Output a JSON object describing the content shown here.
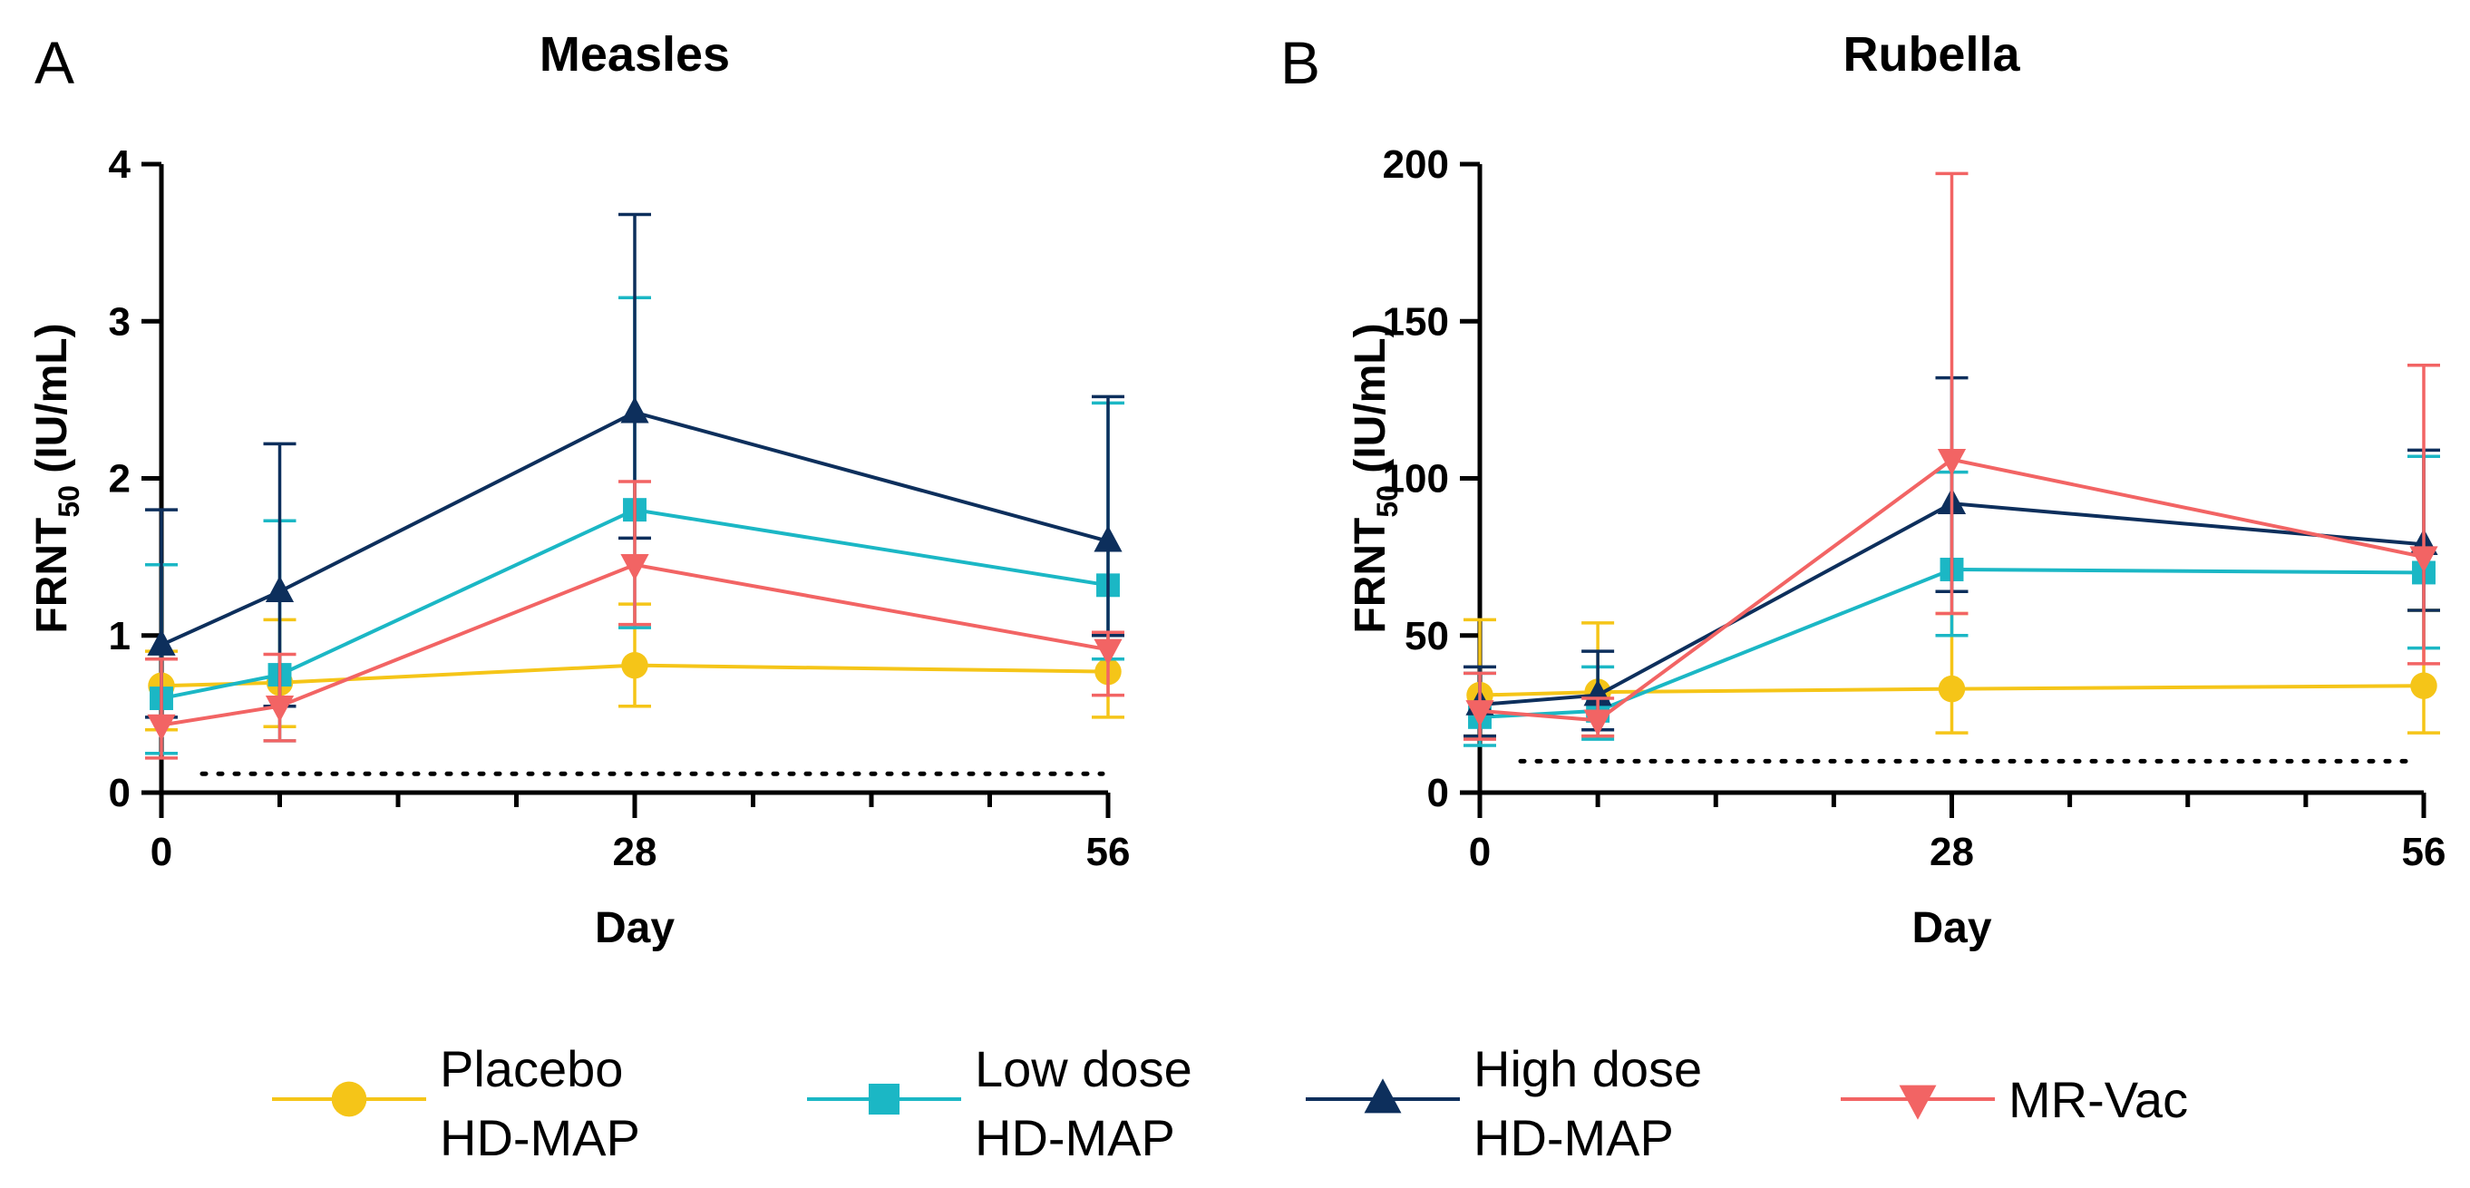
{
  "legend": [
    {
      "series": "placebo",
      "line1": "Placebo",
      "line2": "HD-MAP"
    },
    {
      "series": "low",
      "line1": "Low dose",
      "line2": "HD-MAP"
    },
    {
      "series": "high",
      "line1": "High dose",
      "line2": "HD-MAP"
    },
    {
      "series": "mrvac",
      "line1": "MR-Vac",
      "line2": ""
    }
  ],
  "series_styles": {
    "placebo": {
      "color": "#F5C518",
      "marker": "circle"
    },
    "low": {
      "color": "#1BB7C5",
      "marker": "square"
    },
    "high": {
      "color": "#0D2F5C",
      "marker": "triangle-up"
    },
    "mrvac": {
      "color": "#F26464",
      "marker": "triangle-down"
    }
  },
  "chart_data": [
    {
      "type": "line",
      "panel_label": "A",
      "title": "Measles",
      "xlabel": "Day",
      "ylabel_main": "FRNT",
      "ylabel_sub": "50",
      "ylabel_unit": " (IU/mL)",
      "xlim": [
        0,
        56
      ],
      "ylim": [
        0,
        4
      ],
      "xticks": [
        0,
        28,
        56
      ],
      "xticks_minor": [
        7,
        14,
        21,
        35,
        42,
        49
      ],
      "yticks": [
        0,
        1,
        2,
        3,
        4
      ],
      "detection_limit": 0.12,
      "series": [
        {
          "id": "placebo",
          "name": "Placebo HD-MAP",
          "points": [
            {
              "x": 0,
              "y": 0.68,
              "lo": 0.4,
              "hi": 0.9
            },
            {
              "x": 7,
              "y": 0.7,
              "lo": 0.42,
              "hi": 1.1
            },
            {
              "x": 28,
              "y": 0.81,
              "lo": 0.55,
              "hi": 1.2
            },
            {
              "x": 56,
              "y": 0.77,
              "lo": 0.48,
              "hi": 1.0
            }
          ]
        },
        {
          "id": "low",
          "name": "Low dose HD-MAP",
          "points": [
            {
              "x": 0,
              "y": 0.6,
              "lo": 0.25,
              "hi": 1.45
            },
            {
              "x": 7,
              "y": 0.75,
              "lo": 0.33,
              "hi": 1.73
            },
            {
              "x": 28,
              "y": 1.8,
              "lo": 1.05,
              "hi": 3.15
            },
            {
              "x": 56,
              "y": 1.32,
              "lo": 0.85,
              "hi": 2.48
            }
          ]
        },
        {
          "id": "high",
          "name": "High dose HD-MAP",
          "points": [
            {
              "x": 0,
              "y": 0.94,
              "lo": 0.48,
              "hi": 1.8
            },
            {
              "x": 7,
              "y": 1.28,
              "lo": 0.55,
              "hi": 2.22
            },
            {
              "x": 28,
              "y": 2.42,
              "lo": 1.62,
              "hi": 3.68
            },
            {
              "x": 56,
              "y": 1.6,
              "lo": 1.0,
              "hi": 2.52
            }
          ]
        },
        {
          "id": "mrvac",
          "name": "MR-Vac",
          "points": [
            {
              "x": 0,
              "y": 0.43,
              "lo": 0.22,
              "hi": 0.85
            },
            {
              "x": 7,
              "y": 0.55,
              "lo": 0.33,
              "hi": 0.88
            },
            {
              "x": 28,
              "y": 1.45,
              "lo": 1.07,
              "hi": 1.98
            },
            {
              "x": 56,
              "y": 0.91,
              "lo": 0.62,
              "hi": 1.02
            }
          ]
        }
      ]
    },
    {
      "type": "line",
      "panel_label": "B",
      "title": "Rubella",
      "xlabel": "Day",
      "ylabel_main": "FRNT",
      "ylabel_sub": "50",
      "ylabel_unit": "  (IU/mL)",
      "xlim": [
        0,
        56
      ],
      "ylim": [
        0,
        200
      ],
      "xticks": [
        0,
        28,
        56
      ],
      "xticks_minor": [
        7,
        14,
        21,
        35,
        42,
        49
      ],
      "yticks": [
        0,
        50,
        100,
        150,
        200
      ],
      "detection_limit": 10,
      "series": [
        {
          "id": "placebo",
          "name": "Placebo HD-MAP",
          "points": [
            {
              "x": 0,
              "y": 31,
              "lo": 18,
              "hi": 55
            },
            {
              "x": 7,
              "y": 32,
              "lo": 18,
              "hi": 54
            },
            {
              "x": 28,
              "y": 33,
              "lo": 19,
              "hi": 57
            },
            {
              "x": 56,
              "y": 34,
              "lo": 19,
              "hi": 58
            }
          ]
        },
        {
          "id": "low",
          "name": "Low dose HD-MAP",
          "points": [
            {
              "x": 0,
              "y": 24,
              "lo": 15,
              "hi": 38
            },
            {
              "x": 7,
              "y": 26,
              "lo": 17,
              "hi": 40
            },
            {
              "x": 28,
              "y": 71,
              "lo": 50,
              "hi": 102
            },
            {
              "x": 56,
              "y": 70,
              "lo": 46,
              "hi": 107
            }
          ]
        },
        {
          "id": "high",
          "name": "High dose HD-MAP",
          "points": [
            {
              "x": 0,
              "y": 28,
              "lo": 18,
              "hi": 40
            },
            {
              "x": 7,
              "y": 31,
              "lo": 20,
              "hi": 45
            },
            {
              "x": 28,
              "y": 92,
              "lo": 64,
              "hi": 132
            },
            {
              "x": 56,
              "y": 79,
              "lo": 58,
              "hi": 109
            }
          ]
        },
        {
          "id": "mrvac",
          "name": "MR-Vac",
          "points": [
            {
              "x": 0,
              "y": 26,
              "lo": 17,
              "hi": 38
            },
            {
              "x": 7,
              "y": 23,
              "lo": 18,
              "hi": 30
            },
            {
              "x": 28,
              "y": 106,
              "lo": 57,
              "hi": 197
            },
            {
              "x": 56,
              "y": 75,
              "lo": 41,
              "hi": 136
            }
          ]
        }
      ]
    }
  ]
}
